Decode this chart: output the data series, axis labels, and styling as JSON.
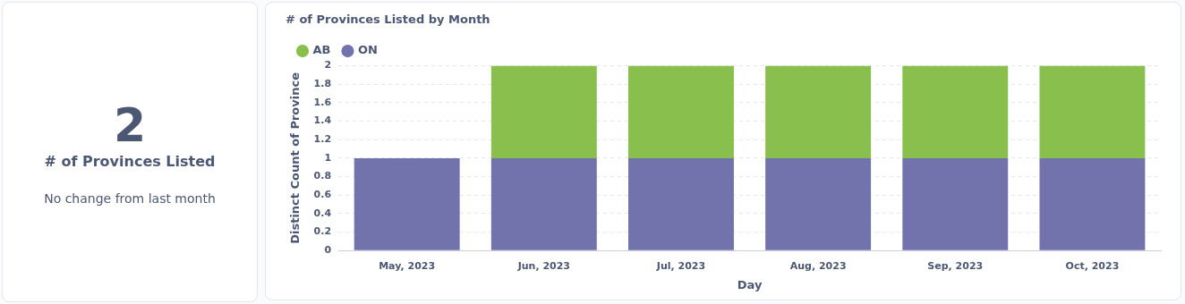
{
  "chart_data": [
    {
      "type": "other",
      "title": "# of Provinces Listed",
      "annotations": [
        "2",
        "No change from last month"
      ]
    },
    {
      "type": "bar",
      "title": "# of Provinces Listed by Month",
      "xlabel": "Day",
      "ylabel": "Distinct Count of Province",
      "categories": [
        "May, 2023",
        "Jun, 2023",
        "Jul, 2023",
        "Aug, 2023",
        "Sep, 2023",
        "Oct, 2023"
      ],
      "series": [
        {
          "name": "ON",
          "color": "#7272ad",
          "values": [
            1,
            1,
            1,
            1,
            1,
            1
          ]
        },
        {
          "name": "AB",
          "color": "#88bf4d",
          "values": [
            null,
            1,
            1,
            1,
            1,
            1
          ]
        }
      ],
      "stacked": true,
      "ylim": [
        0,
        2
      ],
      "yticks": [
        0,
        0.2,
        0.4,
        0.6,
        0.8,
        1,
        1.2,
        1.4,
        1.6,
        1.8,
        2
      ],
      "grid": "y",
      "legend": "top left"
    }
  ]
}
